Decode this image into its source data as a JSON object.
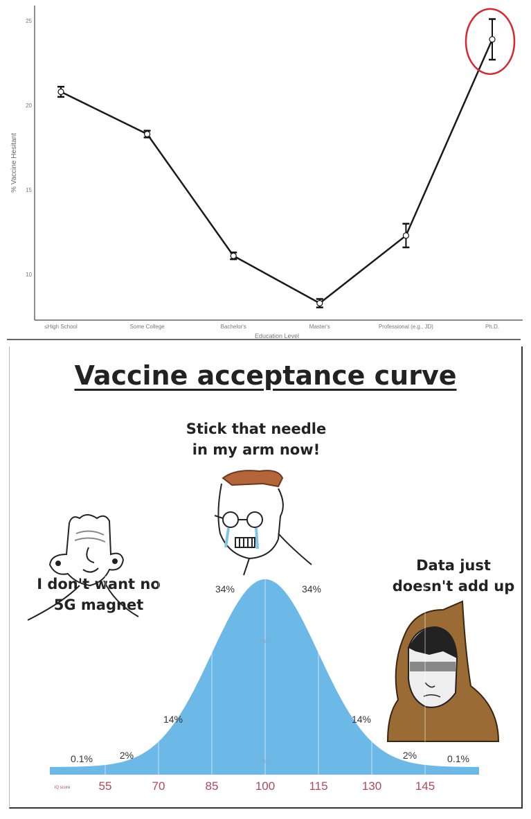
{
  "chart_data": [
    {
      "type": "line",
      "title": "",
      "xlabel": "Education Level",
      "ylabel": "% Vaccine Hesitant",
      "categories": [
        "≤High School",
        "Some College",
        "Bachelor's",
        "Master's",
        "Professional (e.g., JD)",
        "Ph.D."
      ],
      "values": [
        20.8,
        18.3,
        11.1,
        8.3,
        12.3,
        23.9
      ],
      "error": [
        0.3,
        0.2,
        0.2,
        0.25,
        0.7,
        1.2
      ],
      "yticks": [
        10,
        15,
        20,
        25
      ],
      "ylim": [
        7.3,
        25.9
      ],
      "grid": false,
      "highlight": {
        "category": "Ph.D.",
        "color": "#d7262e"
      },
      "line_color": "#1a1a1a"
    },
    {
      "type": "area",
      "title": "Vaccine acceptance curve",
      "xlabel": "IQ score",
      "distribution": {
        "mean": 100,
        "sd": 15
      },
      "xticks": [
        55,
        70,
        85,
        100,
        115,
        130,
        145
      ],
      "xlim": [
        47,
        160
      ],
      "segment_labels": [
        "0.1%",
        "2%",
        "14%",
        "34%",
        "34%",
        "14%",
        "2%",
        "0.1%"
      ],
      "band_labels": [
        "68%",
        "95%"
      ],
      "fill_color": "#6cb8e6",
      "tick_color": "#b5475a",
      "annotations": {
        "left": [
          "I don't want no",
          "5G magnet"
        ],
        "center": [
          "Stick that needle",
          "in my arm now!"
        ],
        "right": [
          "Data just",
          "doesn't add up"
        ]
      }
    }
  ]
}
